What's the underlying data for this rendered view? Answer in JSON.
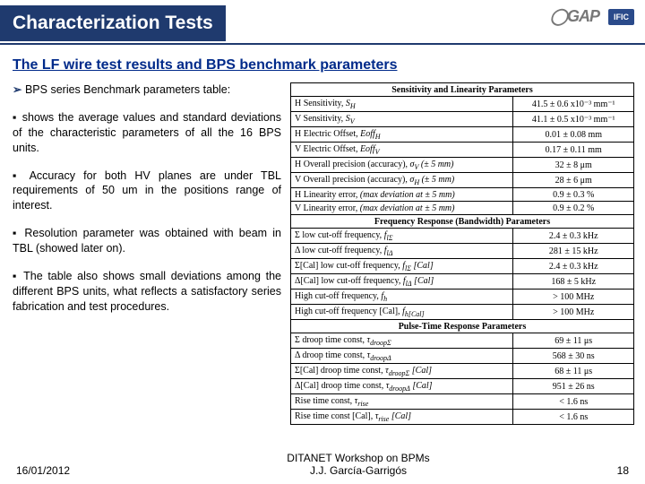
{
  "header": {
    "title": "Characterization Tests",
    "logo_gap": "GAP",
    "logo_ific": "IFIC"
  },
  "subtitle": "The LF wire test results and BPS benchmark parameters",
  "left": {
    "p1_prefix": "➢",
    "p1": "BPS series Benchmark parameters table:",
    "p2": "shows the average values and standard deviations of the characteristic parameters of all the 16 BPS units.",
    "p3": "Accuracy for both HV planes are under TBL requirements of 50 um in the positions range of interest.",
    "p4": "Resolution parameter was obtained with beam in TBL (showed later on).",
    "p5": "The table also shows small deviations among the different BPS units, what reflects a satisfactory series fabrication and test procedures."
  },
  "table": {
    "h1": "Sensitivity and Linearity Parameters",
    "rows1": [
      [
        "H Sensitivity, S_H",
        "41.5 ± 0.6  x10⁻³ mm⁻¹"
      ],
      [
        "V Sensitivity, S_V",
        "41.1 ± 0.5  x10⁻³ mm⁻¹"
      ],
      [
        "H Electric Offset, Eoff_H",
        "0.01 ± 0.08 mm"
      ],
      [
        "V Electric Offset, Eoff_V",
        "0.17 ± 0.11 mm"
      ],
      [
        "H Overall precision (accuracy), σ_V (± 5 mm)",
        "32 ± 8 μm"
      ],
      [
        "V Overall precision (accuracy), σ_H (± 5 mm)",
        "28 ± 6 μm"
      ],
      [
        "H Linearity error, (max deviation at ± 5 mm)",
        "0.9 ± 0.3 %"
      ],
      [
        "V Linearity error, (max deviation at ± 5 mm)",
        "0.9 ± 0.2 %"
      ]
    ],
    "h2": "Frequency Response (Bandwidth) Parameters",
    "rows2": [
      [
        "Σ low cut-off frequency, f_lΣ",
        "2.4 ± 0.3 kHz"
      ],
      [
        "Δ low cut-off frequency, f_lΔ",
        "281 ± 15 kHz"
      ],
      [
        "Σ[Cal] low cut-off frequency, f_lΣ [Cal]",
        "2.4 ± 0.3 kHz"
      ],
      [
        "Δ[Cal] low cut-off frequency, f_lΔ [Cal]",
        "168 ± 5 kHz"
      ],
      [
        "High cut-off frequency, f_h",
        "> 100 MHz"
      ],
      [
        "High cut-off frequency [Cal], f_h[Cal]",
        "> 100 MHz"
      ]
    ],
    "h3": "Pulse-Time Response Parameters",
    "rows3": [
      [
        "Σ droop time const, τ_droopΣ",
        "69 ± 11 μs"
      ],
      [
        "Δ droop time const, τ_droopΔ",
        "568 ± 30 ns"
      ],
      [
        "Σ[Cal] droop time const, τ_droopΣ [Cal]",
        "68 ± 11 μs"
      ],
      [
        "Δ[Cal] droop time const, τ_droopΔ [Cal]",
        "951 ± 26 ns"
      ],
      [
        "Rise time const, τ_rise",
        "< 1.6 ns"
      ],
      [
        "Rise time const [Cal], τ_rise [Cal]",
        "< 1.6 ns"
      ]
    ]
  },
  "footer": {
    "date": "16/01/2012",
    "center1": "DITANET Workshop on BPMs",
    "center2": "J.J. García-Garrigós",
    "page": "18"
  }
}
